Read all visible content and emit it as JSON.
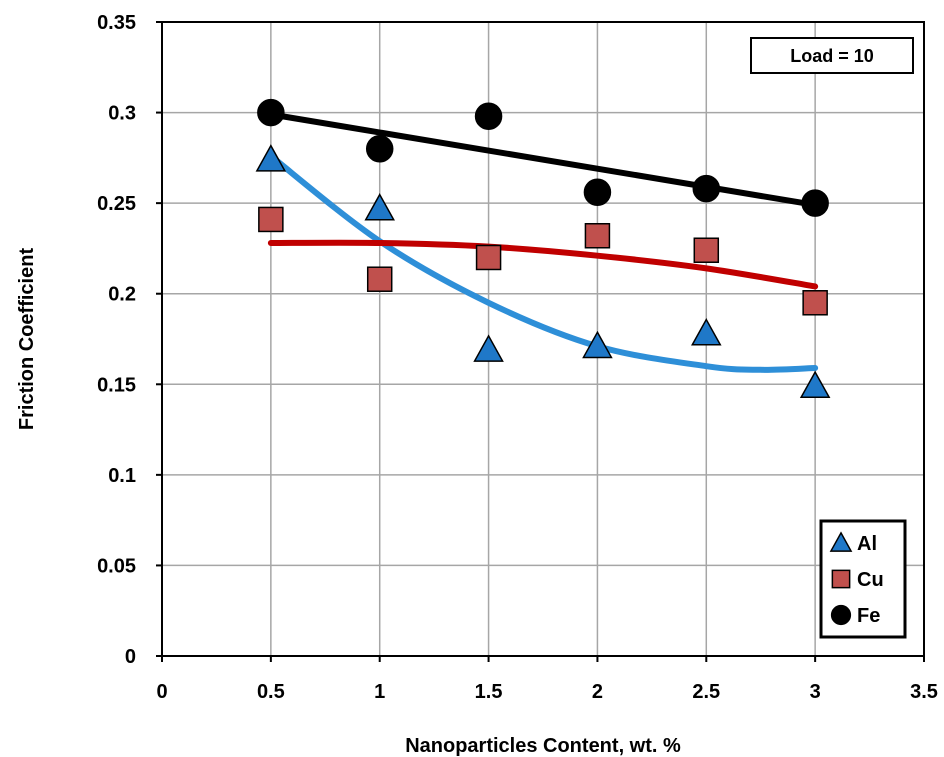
{
  "chart_data": {
    "type": "scatter",
    "xlabel": "Nanoparticles Content, wt. %",
    "ylabel": "Friction Coefficient",
    "xlim": [
      0,
      3.5
    ],
    "ylim": [
      0,
      0.35
    ],
    "xticks": [
      0,
      0.5,
      1,
      1.5,
      2,
      2.5,
      3,
      3.5
    ],
    "xtick_labels": [
      "0",
      "0.5",
      "1",
      "1.5",
      "2",
      "2.5",
      "3",
      "3.5"
    ],
    "yticks": [
      0,
      0.05,
      0.1,
      0.15,
      0.2,
      0.25,
      0.3,
      0.35
    ],
    "ytick_labels": [
      "0",
      "0.05",
      "0.1",
      "0.15",
      "0.2",
      "0.25",
      "0.3",
      "0.35"
    ],
    "grid": true,
    "legend_position": "bottom-right",
    "annotation": "Load = 10",
    "x": [
      0.5,
      1,
      1.5,
      2,
      2.5,
      3
    ],
    "series": [
      {
        "name": "Al",
        "marker": "triangle",
        "color": "#1F78C8",
        "trend_color": "#2E8FD8",
        "trend": "polynomial",
        "values": [
          0.274,
          0.247,
          0.169,
          0.171,
          0.178,
          0.149
        ],
        "trend_points": [
          [
            0.5,
            0.276
          ],
          [
            1,
            0.229
          ],
          [
            1.5,
            0.195
          ],
          [
            2,
            0.171
          ],
          [
            2.5,
            0.16
          ],
          [
            2.75,
            0.158
          ],
          [
            3,
            0.159
          ]
        ]
      },
      {
        "name": "Cu",
        "marker": "square",
        "color": "#C0504D",
        "trend_color": "#C00000",
        "trend": "polynomial",
        "values": [
          0.241,
          0.208,
          0.22,
          0.232,
          0.224,
          0.195
        ],
        "trend_points": [
          [
            0.5,
            0.228
          ],
          [
            1,
            0.228
          ],
          [
            1.5,
            0.226
          ],
          [
            2,
            0.221
          ],
          [
            2.5,
            0.214
          ],
          [
            3,
            0.204
          ]
        ]
      },
      {
        "name": "Fe",
        "marker": "circle",
        "color": "#000000",
        "trend_color": "#000000",
        "trend": "linear",
        "values": [
          0.3,
          0.28,
          0.298,
          0.256,
          0.258,
          0.25
        ],
        "trend_points": [
          [
            0.5,
            0.299
          ],
          [
            3,
            0.249
          ]
        ]
      }
    ]
  }
}
